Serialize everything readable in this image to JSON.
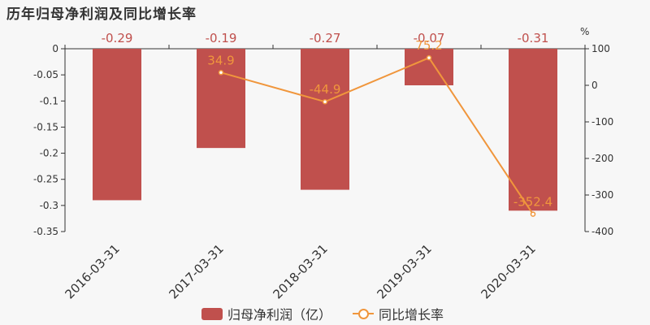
{
  "title": "历年归母净利润及同比增长率",
  "colors": {
    "bar": "#c0504d",
    "line": "#f0963c",
    "axis": "#333333",
    "background": "#f7f7f7"
  },
  "legend": {
    "bar_label": "归母净利润（亿）",
    "line_label": "同比增长率"
  },
  "chart_data": {
    "type": "bar",
    "categories": [
      "2016-03-31",
      "2017-03-31",
      "2018-03-31",
      "2019-03-31",
      "2020-03-31"
    ],
    "series": [
      {
        "name": "归母净利润（亿）",
        "type": "bar",
        "axis": "left",
        "values": [
          -0.29,
          -0.19,
          -0.27,
          -0.07,
          -0.31
        ],
        "labels": [
          "-0.29",
          "-0.19",
          "-0.27",
          "-0.07",
          "-0.31"
        ]
      },
      {
        "name": "同比增长率",
        "type": "line",
        "axis": "right",
        "values": [
          null,
          34.9,
          -44.9,
          75.2,
          -352.4
        ],
        "labels": [
          "",
          "34.9",
          "-44.9",
          "75.2",
          "-352.4"
        ]
      }
    ],
    "y_left": {
      "ylim": [
        -0.35,
        0
      ],
      "ticks": [
        0,
        -0.05,
        -0.1,
        -0.15,
        -0.2,
        -0.25,
        -0.3,
        -0.35
      ],
      "tick_labels": [
        "0",
        "-0.05",
        "-0.1",
        "-0.15",
        "-0.2",
        "-0.25",
        "-0.3",
        "-0.35"
      ]
    },
    "y_right": {
      "unit": "%",
      "ylim": [
        -400,
        100
      ],
      "ticks": [
        100,
        0,
        -100,
        -200,
        -300,
        -400
      ],
      "tick_labels": [
        "100",
        "0",
        "-100",
        "-200",
        "-300",
        "-400"
      ]
    },
    "grid": false,
    "legend_position": "bottom"
  }
}
